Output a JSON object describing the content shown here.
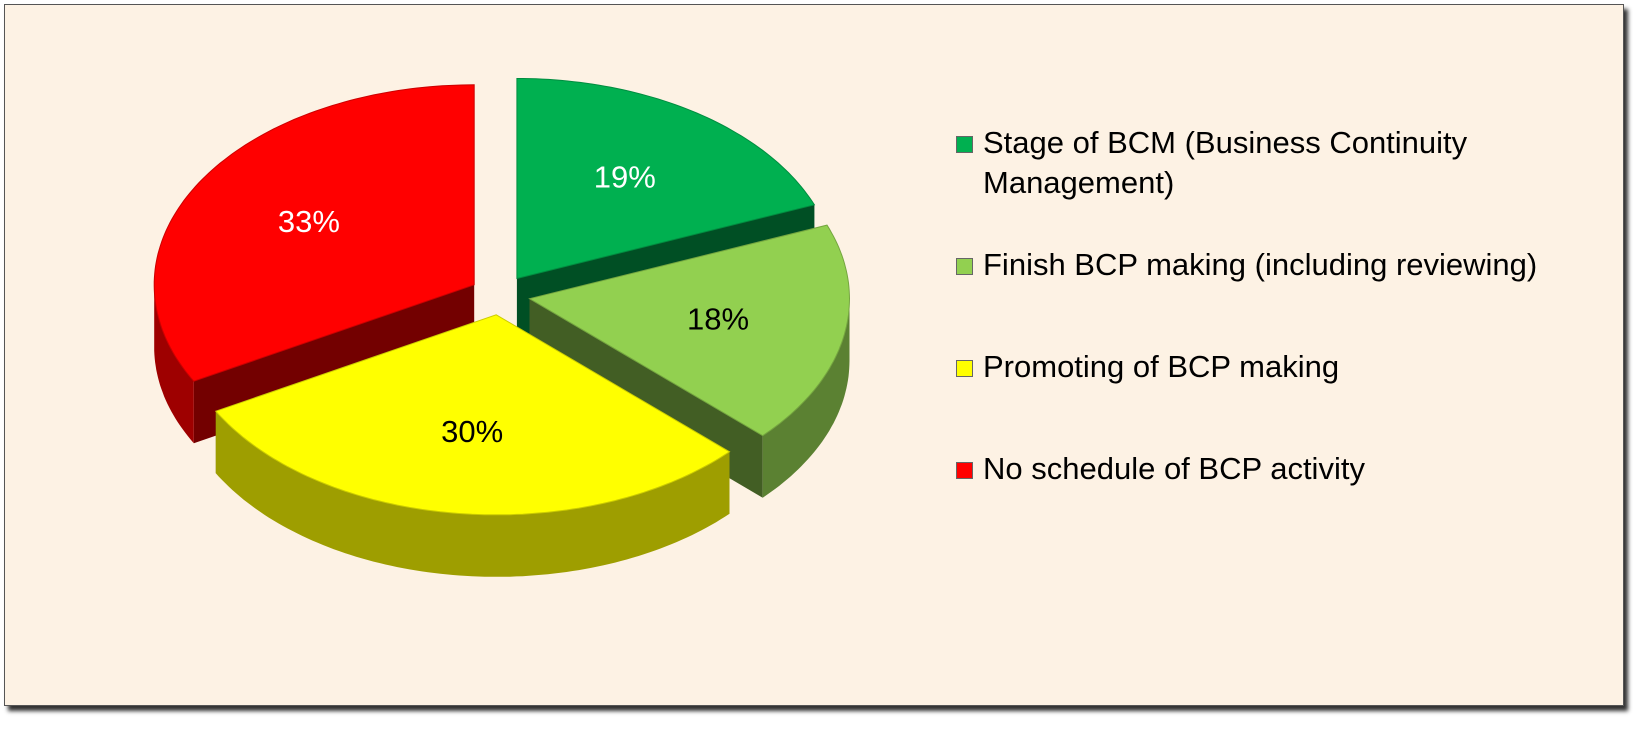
{
  "chart_data": {
    "type": "pie",
    "categories": [
      "Stage of BCM (Business Continuity Management)",
      "Finish BCP making (including reviewing)",
      "Promoting of BCP making",
      "No schedule of BCP activity"
    ],
    "values": [
      19,
      18,
      30,
      33
    ],
    "value_labels": [
      "19%",
      "18%",
      "30%",
      "33%"
    ],
    "colors": [
      "#00b050",
      "#92d050",
      "#ffff00",
      "#ff0000"
    ],
    "label_colors": [
      "#ffffff",
      "#000000",
      "#000000",
      "#ffffff"
    ],
    "legend": "right"
  }
}
